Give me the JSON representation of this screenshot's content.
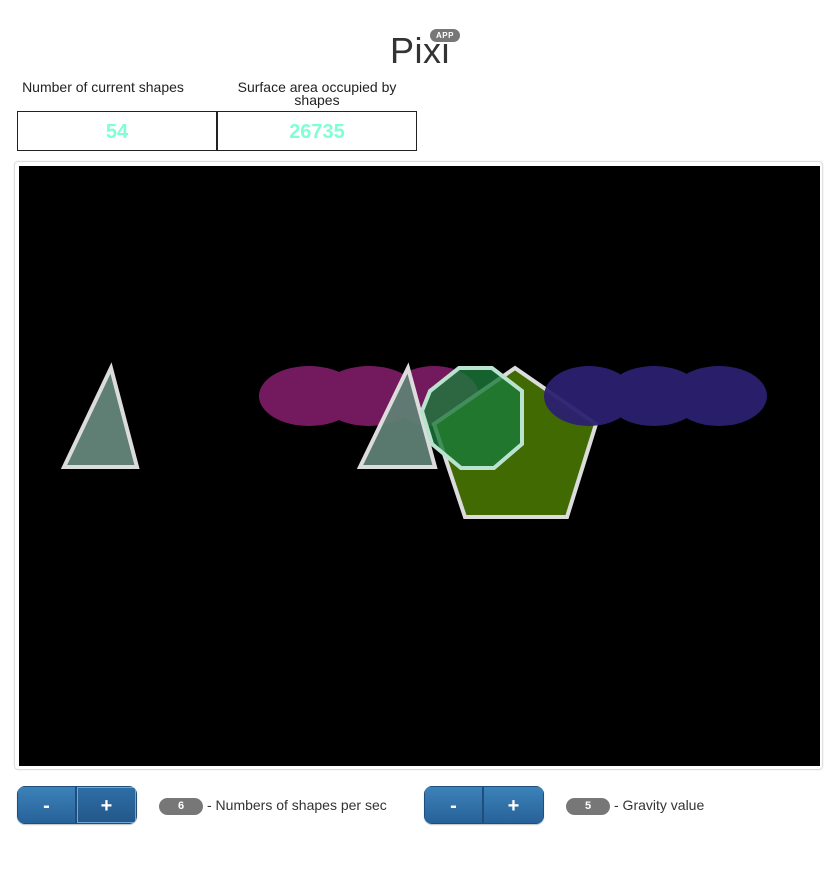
{
  "header": {
    "title": "Pixi",
    "badge": "APP"
  },
  "stats": {
    "shapes_label": "Number of current shapes",
    "shapes_value": "54",
    "area_label": "Surface area occupied by shapes",
    "area_value": "26735",
    "value_color": "#7fffd4"
  },
  "stage": {
    "background": "#000000",
    "shapes": [
      {
        "kind": "triangle",
        "fill": "#5f7f74"
      },
      {
        "kind": "cloud",
        "fill": "#7a1c65"
      },
      {
        "kind": "triangle",
        "fill": "#5f7f74"
      },
      {
        "kind": "octagon",
        "fill": "#1a7a3a"
      },
      {
        "kind": "pentagon",
        "fill": "#416b02"
      },
      {
        "kind": "cloud",
        "fill": "#2b2070"
      }
    ]
  },
  "controls": {
    "rate": {
      "minus": "-",
      "plus": "+",
      "value": "6",
      "label": "- Numbers of shapes per sec"
    },
    "gravity": {
      "minus": "-",
      "plus": "+",
      "value": "5",
      "label": "- Gravity value"
    }
  }
}
